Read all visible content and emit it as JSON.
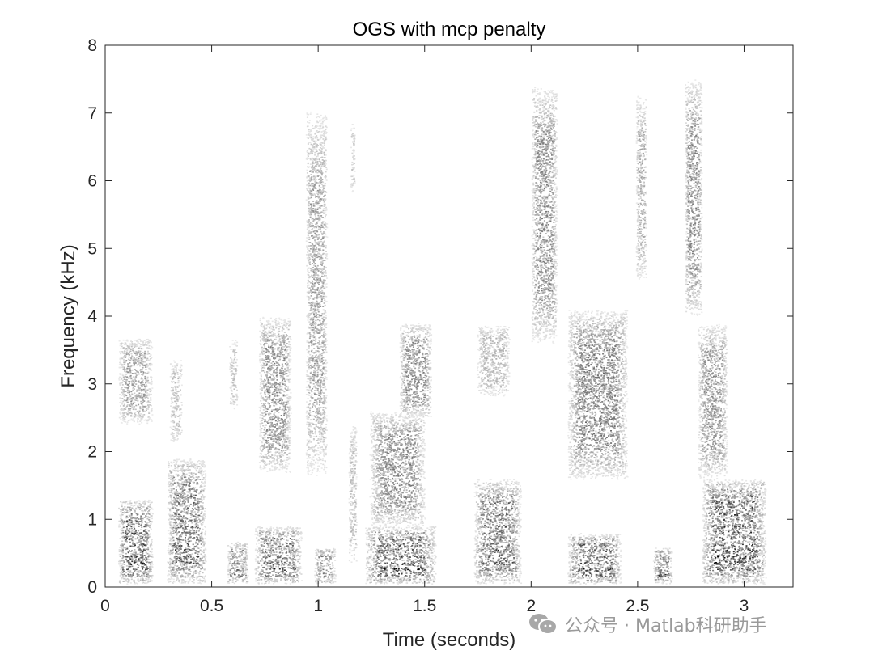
{
  "chart_data": {
    "type": "heatmap",
    "title": "OGS with mcp penalty",
    "xlabel": "Time (seconds)",
    "ylabel": "Frequency (kHz)",
    "xlim": [
      0,
      3.23
    ],
    "ylim": [
      0,
      8
    ],
    "xticks": [
      0,
      0.5,
      1,
      1.5,
      2,
      2.5,
      3
    ],
    "xtick_labels": [
      "0",
      "0.5",
      "1",
      "1.5",
      "2",
      "2.5",
      "3"
    ],
    "yticks": [
      0,
      1,
      2,
      3,
      4,
      5,
      6,
      7,
      8
    ],
    "ytick_labels": [
      "0",
      "1",
      "2",
      "3",
      "4",
      "5",
      "6",
      "7",
      "8"
    ],
    "colormap": "gray-reversed",
    "grid": false,
    "energy_regions": [
      {
        "t": [
          0.06,
          0.22
        ],
        "f": [
          0.05,
          1.3
        ],
        "intensity": 0.85,
        "harmonic": true
      },
      {
        "t": [
          0.06,
          0.22
        ],
        "f": [
          2.4,
          3.7
        ],
        "intensity": 0.45,
        "harmonic": false
      },
      {
        "t": [
          0.29,
          0.47
        ],
        "f": [
          0.05,
          1.9
        ],
        "intensity": 0.75,
        "harmonic": true
      },
      {
        "t": [
          0.3,
          0.36
        ],
        "f": [
          2.1,
          3.4
        ],
        "intensity": 0.3,
        "harmonic": false
      },
      {
        "t": [
          0.57,
          0.67
        ],
        "f": [
          0.05,
          0.7
        ],
        "intensity": 0.6,
        "harmonic": true
      },
      {
        "t": [
          0.58,
          0.62
        ],
        "f": [
          2.6,
          3.7
        ],
        "intensity": 0.3,
        "harmonic": false
      },
      {
        "t": [
          0.7,
          0.92
        ],
        "f": [
          0.05,
          0.9
        ],
        "intensity": 0.75,
        "harmonic": true
      },
      {
        "t": [
          0.72,
          0.87
        ],
        "f": [
          1.7,
          4.0
        ],
        "intensity": 0.55,
        "harmonic": false
      },
      {
        "t": [
          0.94,
          1.04
        ],
        "f": [
          1.6,
          7.1
        ],
        "intensity": 0.45,
        "harmonic": false
      },
      {
        "t": [
          0.98,
          1.08
        ],
        "f": [
          0.05,
          0.6
        ],
        "intensity": 0.6,
        "harmonic": true
      },
      {
        "t": [
          1.14,
          1.18
        ],
        "f": [
          0.3,
          2.5
        ],
        "intensity": 0.3,
        "harmonic": false
      },
      {
        "t": [
          1.15,
          1.17
        ],
        "f": [
          5.8,
          6.9
        ],
        "intensity": 0.3,
        "harmonic": false
      },
      {
        "t": [
          1.22,
          1.55
        ],
        "f": [
          0.05,
          0.9
        ],
        "intensity": 0.85,
        "harmonic": true
      },
      {
        "t": [
          1.24,
          1.5
        ],
        "f": [
          0.9,
          2.6
        ],
        "intensity": 0.55,
        "harmonic": false
      },
      {
        "t": [
          1.38,
          1.53
        ],
        "f": [
          2.5,
          3.9
        ],
        "intensity": 0.55,
        "harmonic": false
      },
      {
        "t": [
          1.73,
          1.95
        ],
        "f": [
          0.05,
          1.6
        ],
        "intensity": 0.75,
        "harmonic": true
      },
      {
        "t": [
          1.74,
          1.9
        ],
        "f": [
          2.8,
          3.9
        ],
        "intensity": 0.35,
        "harmonic": false
      },
      {
        "t": [
          2.0,
          2.12
        ],
        "f": [
          3.6,
          7.4
        ],
        "intensity": 0.55,
        "harmonic": false
      },
      {
        "t": [
          2.17,
          2.42
        ],
        "f": [
          0.05,
          0.8
        ],
        "intensity": 0.8,
        "harmonic": true
      },
      {
        "t": [
          2.17,
          2.45
        ],
        "f": [
          1.6,
          4.1
        ],
        "intensity": 0.6,
        "harmonic": false
      },
      {
        "t": [
          2.49,
          2.54
        ],
        "f": [
          4.5,
          7.3
        ],
        "intensity": 0.4,
        "harmonic": false
      },
      {
        "t": [
          2.57,
          2.66
        ],
        "f": [
          0.05,
          0.6
        ],
        "intensity": 0.7,
        "harmonic": true
      },
      {
        "t": [
          2.72,
          2.8
        ],
        "f": [
          4.0,
          7.5
        ],
        "intensity": 0.55,
        "harmonic": false
      },
      {
        "t": [
          2.78,
          2.92
        ],
        "f": [
          1.6,
          3.9
        ],
        "intensity": 0.5,
        "harmonic": false
      },
      {
        "t": [
          2.8,
          3.1
        ],
        "f": [
          0.05,
          1.6
        ],
        "intensity": 0.9,
        "harmonic": true
      }
    ]
  },
  "watermark": {
    "text": "公众号 · Matlab科研助手",
    "icon": "wechat-icon"
  }
}
